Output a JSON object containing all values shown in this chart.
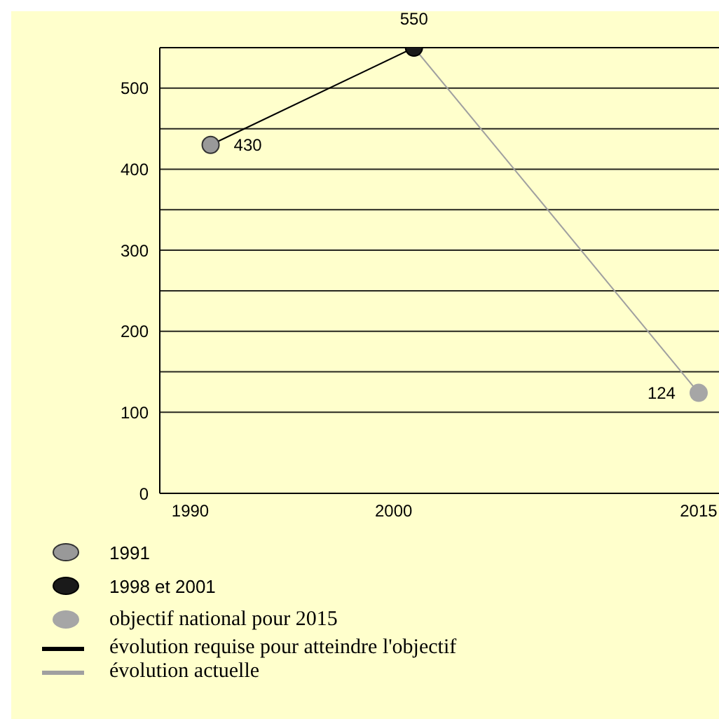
{
  "chart_data": {
    "type": "scatter",
    "xlim": [
      1988.5,
      2016
    ],
    "xticks": [
      1990,
      2000,
      2015
    ],
    "ylim": [
      0,
      550
    ],
    "yticks": [
      0,
      100,
      {
        "value": 150,
        "label": null
      },
      200,
      {
        "value": 250,
        "label": null
      },
      300,
      {
        "value": 350,
        "label": null
      },
      400,
      {
        "value": 450,
        "label": null
      },
      500,
      {
        "value": 550,
        "label": null
      }
    ],
    "grid": "y",
    "legend": "bottom",
    "marker": "circle",
    "line_style": "solid",
    "series": [
      {
        "name": "1991",
        "color": "#999999",
        "x": [
          1991
        ],
        "values": [
          430
        ],
        "value_labels": [
          "430"
        ]
      },
      {
        "name": "1998 et 2001",
        "color": "#1a1a1a",
        "x": [
          2001
        ],
        "values": [
          550
        ],
        "value_labels": [
          "550"
        ]
      },
      {
        "name": "objectif national pour 2015",
        "color": "#a6a6a6",
        "x": [
          2015
        ],
        "values": [
          124
        ],
        "value_labels": [
          "124"
        ]
      },
      {
        "name": "évolution requise pour atteindre l'objectif",
        "type": "line",
        "color": "#000000",
        "marker": "none",
        "x": [
          1991,
          2001
        ],
        "values": [
          430,
          550
        ]
      },
      {
        "name": "évolution actuelle",
        "type": "line",
        "color": "#a0a0a0",
        "marker": "none",
        "x": [
          2001,
          2015
        ],
        "values": [
          550,
          124
        ]
      }
    ]
  }
}
